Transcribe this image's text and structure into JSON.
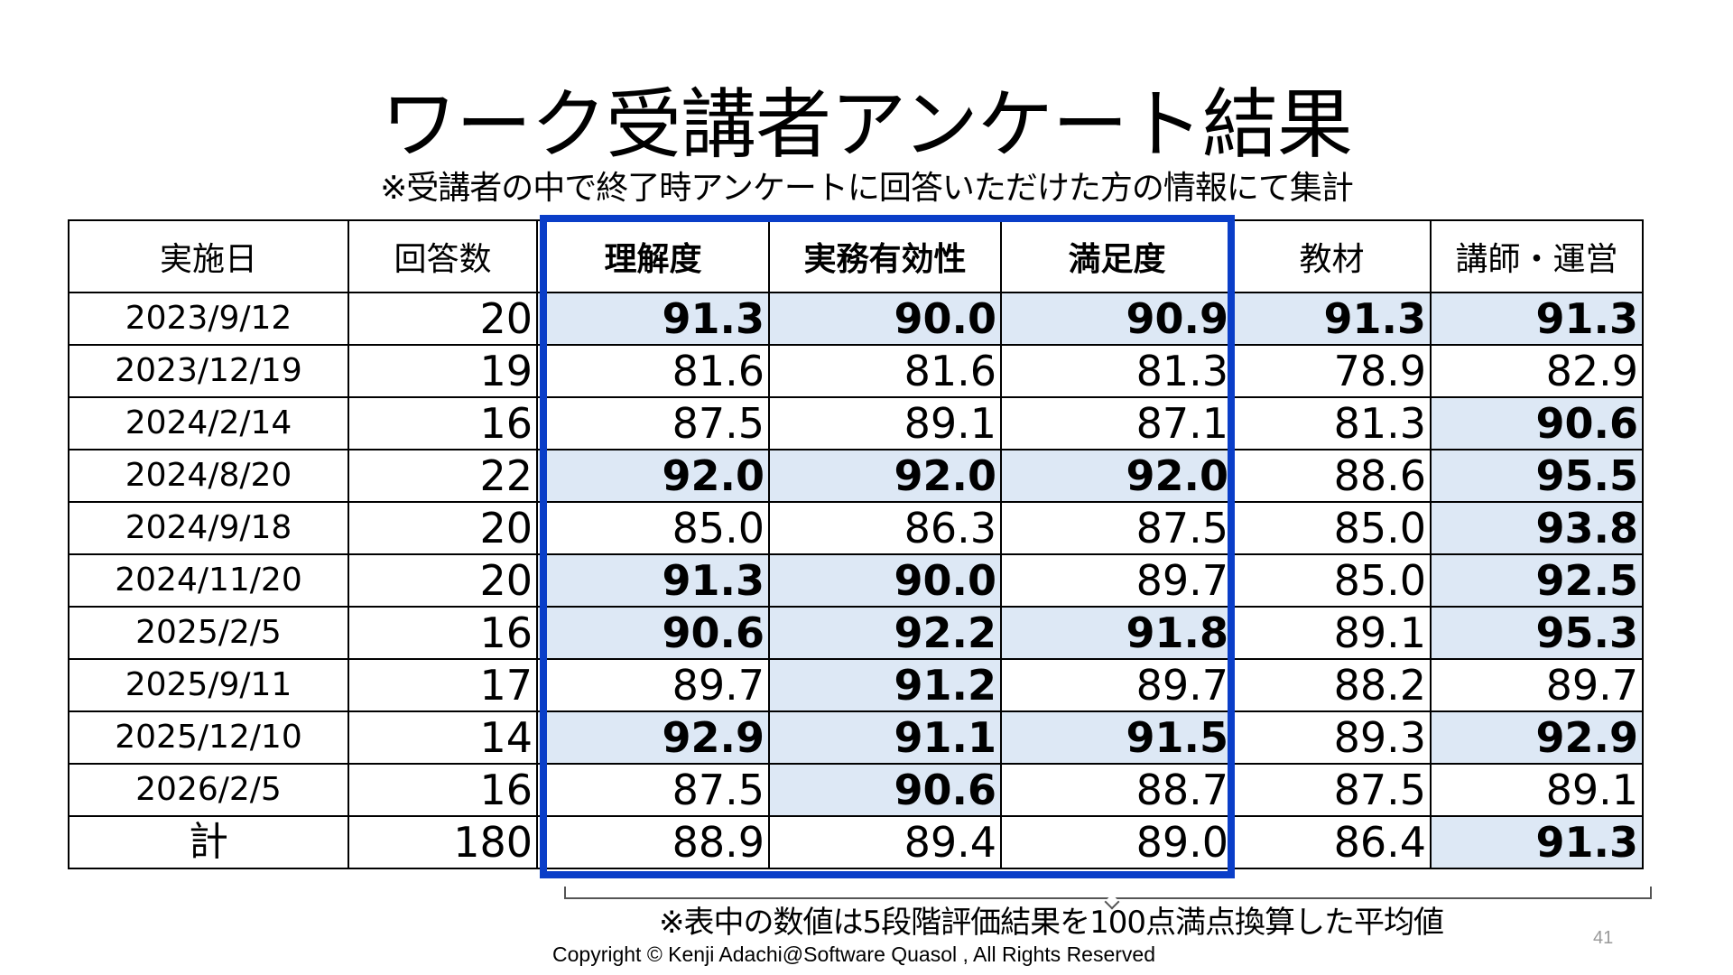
{
  "title": "ワーク受講者アンケート結果",
  "subtitle": "※受講者の中で終了時アンケートに回答いただけた方の情報にて集計",
  "table": {
    "headers": [
      "実施日",
      "回答数",
      "理解度",
      "実務有効性",
      "満足度",
      "教材",
      "講師・運営"
    ],
    "rows": [
      {
        "date": "2023/9/12",
        "count": "20",
        "values": [
          "91.3",
          "90.0",
          "90.9",
          "91.3",
          "91.3"
        ],
        "highlight": [
          true,
          true,
          true,
          true,
          true
        ]
      },
      {
        "date": "2023/12/19",
        "count": "19",
        "values": [
          "81.6",
          "81.6",
          "81.3",
          "78.9",
          "82.9"
        ],
        "highlight": [
          false,
          false,
          false,
          false,
          false
        ]
      },
      {
        "date": "2024/2/14",
        "count": "16",
        "values": [
          "87.5",
          "89.1",
          "87.1",
          "81.3",
          "90.6"
        ],
        "highlight": [
          false,
          false,
          false,
          false,
          true
        ]
      },
      {
        "date": "2024/8/20",
        "count": "22",
        "values": [
          "92.0",
          "92.0",
          "92.0",
          "88.6",
          "95.5"
        ],
        "highlight": [
          true,
          true,
          true,
          false,
          true
        ]
      },
      {
        "date": "2024/9/18",
        "count": "20",
        "values": [
          "85.0",
          "86.3",
          "87.5",
          "85.0",
          "93.8"
        ],
        "highlight": [
          false,
          false,
          false,
          false,
          true
        ]
      },
      {
        "date": "2024/11/20",
        "count": "20",
        "values": [
          "91.3",
          "90.0",
          "89.7",
          "85.0",
          "92.5"
        ],
        "highlight": [
          true,
          true,
          false,
          false,
          true
        ]
      },
      {
        "date": "2025/2/5",
        "count": "16",
        "values": [
          "90.6",
          "92.2",
          "91.8",
          "89.1",
          "95.3"
        ],
        "highlight": [
          true,
          true,
          true,
          false,
          true
        ]
      },
      {
        "date": "2025/9/11",
        "count": "17",
        "values": [
          "89.7",
          "91.2",
          "89.7",
          "88.2",
          "89.7"
        ],
        "highlight": [
          false,
          true,
          false,
          false,
          false
        ]
      },
      {
        "date": "2025/12/10",
        "count": "14",
        "values": [
          "92.9",
          "91.1",
          "91.5",
          "89.3",
          "92.9"
        ],
        "highlight": [
          true,
          true,
          true,
          false,
          true
        ]
      },
      {
        "date": "2026/2/5",
        "count": "16",
        "values": [
          "87.5",
          "90.6",
          "88.7",
          "87.5",
          "89.1"
        ],
        "highlight": [
          false,
          true,
          false,
          false,
          false
        ]
      }
    ],
    "total": {
      "label": "計",
      "count": "180",
      "values": [
        "88.9",
        "89.4",
        "89.0",
        "86.4",
        "91.3"
      ],
      "highlight": [
        false,
        false,
        false,
        false,
        true
      ]
    }
  },
  "colors": {
    "frame": "#0a3ec8",
    "highlight": "#dde8f5"
  },
  "note": "※表中の数値は5段階評価結果を100点満点換算した平均値",
  "copyright": "Copyright ©  Kenji Adachi@Software Quasol , All Rights Reserved",
  "page_number": "41"
}
